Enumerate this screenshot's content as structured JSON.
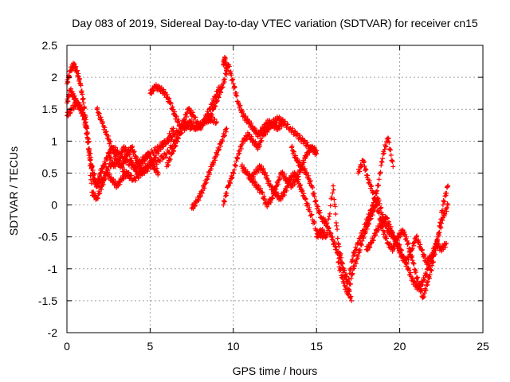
{
  "chart_data": {
    "type": "scatter",
    "title": "Day 083 of 2019, Sidereal Day-to-day VTEC variation (SDTVAR) for receiver cn15",
    "xlabel": "GPS time / hours",
    "ylabel": "SDTVAR / TECUs",
    "xlim": [
      0,
      25
    ],
    "ylim": [
      -2,
      2.5
    ],
    "xticks": [
      "0",
      "5",
      "10",
      "15",
      "20",
      "25"
    ],
    "yticks": [
      "-2",
      "-1.5",
      "-1",
      "-0.5",
      "0",
      "0.5",
      "1",
      "1.5",
      "2",
      "2.5"
    ],
    "grid": true,
    "legend": "none",
    "marker": "plus",
    "color": "#ff0000",
    "series": [
      {
        "x": [
          0.0,
          0.2,
          0.4,
          0.6,
          0.8,
          1.0,
          1.2,
          1.4,
          1.6,
          1.8,
          2.0,
          2.2,
          2.5,
          2.8,
          3.1,
          3.5,
          4.0,
          4.5,
          5.0,
          5.5,
          6.0,
          6.5,
          7.0,
          7.5
        ],
        "y": [
          1.6,
          1.8,
          1.7,
          1.6,
          1.5,
          1.4,
          1.1,
          0.7,
          0.4,
          0.3,
          0.5,
          0.6,
          0.8,
          0.9,
          0.8,
          0.7,
          0.6,
          0.7,
          0.8,
          0.9,
          1.0,
          1.1,
          1.3,
          1.2
        ]
      },
      {
        "x": [
          0.0,
          0.2,
          0.4,
          0.6,
          0.8,
          1.0,
          1.2,
          1.5,
          1.8,
          2.1,
          2.5,
          3.0,
          3.5,
          4.0,
          4.5,
          5.0
        ],
        "y": [
          1.9,
          2.1,
          2.2,
          2.1,
          1.9,
          1.6,
          1.2,
          0.6,
          0.3,
          0.4,
          0.6,
          0.7,
          0.5,
          0.4,
          0.5,
          0.6
        ]
      },
      {
        "x": [
          0.0,
          0.3,
          0.6,
          0.9,
          1.2,
          1.5,
          1.8,
          2.1,
          2.4,
          2.7,
          3.0,
          3.3,
          3.6,
          4.0,
          4.5,
          5.0,
          5.5,
          6.0,
          6.5,
          7.0
        ],
        "y": [
          1.4,
          1.5,
          1.6,
          1.5,
          1.2,
          0.2,
          0.1,
          0.3,
          0.5,
          0.4,
          0.3,
          0.4,
          0.5,
          0.4,
          0.5,
          0.6,
          0.7,
          0.8,
          1.0,
          1.2
        ]
      },
      {
        "x": [
          1.8,
          2.1,
          2.4,
          2.7,
          3.0,
          3.3,
          3.6,
          3.9,
          4.2,
          4.5,
          4.8,
          5.2,
          5.6,
          6.0,
          6.4
        ],
        "y": [
          1.5,
          1.3,
          1.1,
          0.9,
          0.7,
          0.6,
          0.8,
          0.9,
          0.7,
          0.5,
          0.6,
          0.7,
          0.9,
          1.0,
          1.2
        ]
      },
      {
        "x": [
          2.5,
          2.8,
          3.1,
          3.4,
          3.7,
          4.0,
          4.3,
          4.6,
          4.9,
          5.2,
          5.5
        ],
        "y": [
          0.8,
          0.6,
          0.7,
          0.9,
          0.8,
          0.6,
          0.5,
          0.7,
          0.8,
          0.6,
          0.5
        ]
      },
      {
        "x": [
          5.0,
          5.3,
          5.6,
          5.9,
          6.2,
          6.5,
          6.8,
          7.1,
          7.4,
          7.7,
          8.0,
          8.3,
          8.6,
          9.0
        ],
        "y": [
          1.75,
          1.85,
          1.82,
          1.75,
          1.6,
          1.4,
          1.25,
          1.2,
          1.3,
          1.2,
          1.25,
          1.3,
          1.35,
          1.3
        ]
      },
      {
        "x": [
          6.0,
          6.3,
          6.6,
          7.0,
          7.3,
          7.6,
          8.0,
          8.3,
          8.6,
          8.9,
          9.2
        ],
        "y": [
          0.6,
          0.8,
          1.0,
          1.3,
          1.5,
          1.4,
          1.2,
          1.35,
          1.5,
          1.7,
          1.85
        ]
      },
      {
        "x": [
          7.5,
          7.8,
          8.1,
          8.4,
          8.7,
          9.0,
          9.3,
          9.6
        ],
        "y": [
          -0.05,
          0.05,
          0.2,
          0.4,
          0.6,
          0.8,
          1.0,
          1.2
        ]
      },
      {
        "x": [
          8.5,
          8.8,
          9.1,
          9.4,
          9.7,
          10.0,
          10.3,
          10.6,
          10.9,
          11.2,
          11.5,
          11.8,
          12.1,
          12.4,
          12.7,
          13.0
        ],
        "y": [
          1.3,
          1.5,
          1.7,
          1.9,
          2.2,
          1.9,
          1.6,
          1.4,
          1.3,
          1.2,
          1.1,
          1.2,
          1.3,
          1.25,
          1.2,
          1.3
        ]
      },
      {
        "x": [
          9.4,
          9.5,
          9.6
        ],
        "y": [
          2.2,
          2.3,
          2.1
        ]
      },
      {
        "x": [
          9.4,
          9.7,
          10.0,
          10.3,
          10.6,
          10.9,
          11.2,
          11.5,
          11.8,
          12.1,
          12.4,
          12.7,
          13.0,
          13.4,
          13.8,
          14.2,
          14.6,
          15.0
        ],
        "y": [
          0.0,
          0.3,
          0.5,
          0.8,
          1.0,
          1.1,
          1.0,
          0.9,
          1.1,
          1.2,
          1.3,
          1.35,
          1.3,
          1.2,
          1.1,
          1.0,
          0.9,
          0.85
        ]
      },
      {
        "x": [
          10.5,
          10.8,
          11.1,
          11.4,
          11.7,
          12.0,
          12.3,
          12.6,
          12.9,
          13.2,
          13.5,
          13.8,
          14.1,
          14.4,
          14.7,
          15.0
        ],
        "y": [
          0.6,
          0.5,
          0.4,
          0.3,
          0.2,
          0.0,
          0.1,
          0.3,
          0.5,
          0.4,
          0.3,
          0.4,
          0.6,
          0.8,
          0.9,
          0.8
        ]
      },
      {
        "x": [
          11.0,
          11.3,
          11.6,
          11.9,
          12.2,
          12.5,
          12.8,
          13.1,
          13.4,
          13.7,
          14.0,
          14.3,
          14.6,
          15.0,
          15.4
        ],
        "y": [
          0.4,
          0.5,
          0.6,
          0.5,
          0.3,
          0.2,
          0.1,
          0.2,
          0.4,
          0.5,
          0.3,
          0.1,
          -0.1,
          -0.4,
          -0.5
        ]
      },
      {
        "x": [
          13.5,
          13.8,
          14.1,
          14.4,
          14.7,
          15.0,
          15.3,
          15.6,
          15.9,
          16.2,
          16.5,
          16.8,
          17.1
        ],
        "y": [
          0.9,
          0.7,
          0.6,
          0.5,
          0.3,
          0.0,
          -0.2,
          -0.3,
          -0.5,
          -0.7,
          -0.9,
          -1.2,
          -1.5
        ]
      },
      {
        "x": [
          15.0,
          15.3,
          15.6,
          16.0,
          16.3,
          16.6,
          16.9,
          17.2,
          17.5,
          17.8,
          18.1,
          18.4,
          18.7,
          19.0,
          19.3,
          19.6
        ],
        "y": [
          -0.5,
          -0.4,
          -0.5,
          0.3,
          -0.6,
          -1.0,
          -1.2,
          -0.8,
          -0.6,
          -0.4,
          -0.2,
          0.0,
          0.3,
          0.8,
          1.05,
          0.6
        ]
      },
      {
        "x": [
          16.3,
          16.6,
          16.9,
          17.2,
          17.5,
          17.8,
          18.1,
          18.4,
          18.7,
          19.0,
          19.3,
          19.6,
          19.9,
          20.2,
          20.5,
          20.8,
          21.1,
          21.4,
          21.7,
          22.0,
          22.3,
          22.6,
          22.9
        ],
        "y": [
          -0.9,
          -1.2,
          -1.4,
          -1.0,
          -0.8,
          -0.5,
          -0.3,
          -0.1,
          0.1,
          -0.2,
          -0.4,
          -0.5,
          -0.6,
          -0.8,
          -1.0,
          -1.2,
          -1.3,
          -1.2,
          -1.0,
          -0.8,
          -0.5,
          -0.2,
          0.0
        ]
      },
      {
        "x": [
          17.5,
          17.8,
          18.1,
          18.4,
          18.7,
          19.0,
          19.3,
          19.6,
          19.9,
          20.2,
          20.5,
          20.8,
          21.1,
          21.4,
          21.7,
          22.0,
          22.3,
          22.6,
          22.9
        ],
        "y": [
          0.5,
          0.7,
          0.4,
          0.2,
          -0.1,
          -0.4,
          -0.6,
          -0.7,
          -0.5,
          -0.4,
          -0.6,
          -0.9,
          -1.2,
          -1.45,
          -1.2,
          -0.9,
          -0.5,
          0.0,
          0.3
        ]
      },
      {
        "x": [
          18.0,
          18.3,
          18.6,
          18.9,
          19.2,
          19.5,
          19.8,
          20.1,
          20.4,
          20.7,
          21.0,
          21.3,
          21.6,
          21.9,
          22.2,
          22.5,
          22.8
        ],
        "y": [
          -0.7,
          -0.6,
          -0.4,
          -0.3,
          -0.2,
          -0.4,
          -0.6,
          -0.8,
          -0.9,
          -0.7,
          -0.5,
          -0.7,
          -0.9,
          -0.8,
          -0.6,
          -0.7,
          -0.6
        ]
      }
    ]
  }
}
